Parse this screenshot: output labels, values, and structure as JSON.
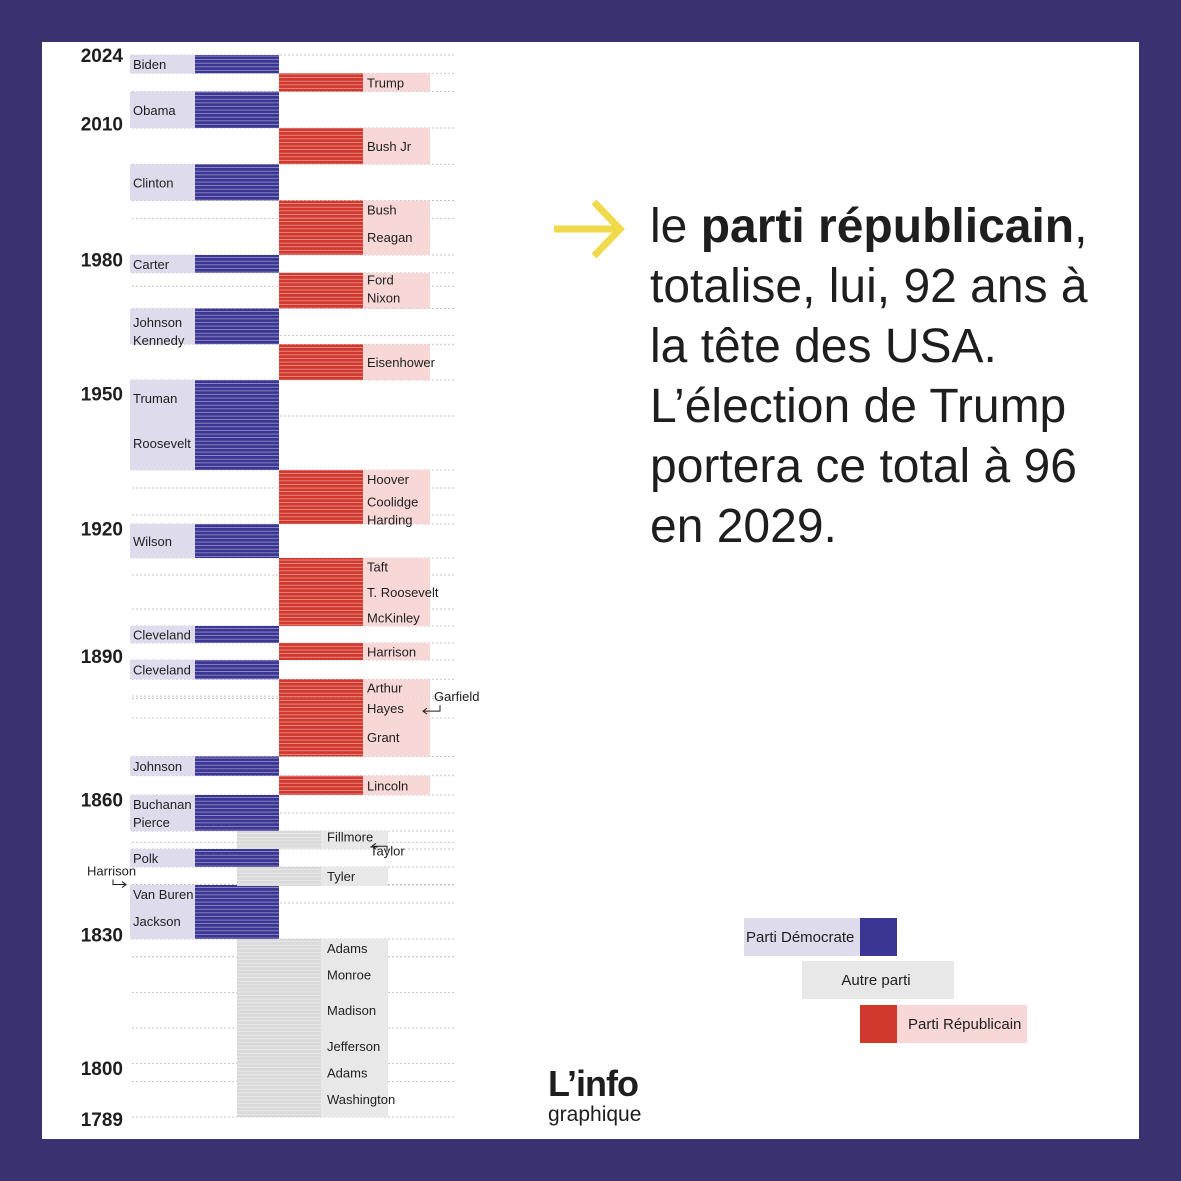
{
  "chart_data": {
    "type": "timeline",
    "title": "",
    "year_ticks": [
      "2024",
      "2010",
      "1980",
      "1950",
      "1920",
      "1890",
      "1860",
      "1830",
      "1800",
      "1789"
    ],
    "parties": [
      {
        "key": "dem",
        "name": "Parti Démocrate",
        "color": "#3b3593",
        "label_bg": "#dedcec"
      },
      {
        "key": "other",
        "name": "Autre parti",
        "color": "#d9d9d9",
        "label_bg": "#e8e8e8"
      },
      {
        "key": "rep",
        "name": "Parti Républicain",
        "color": "#d2392e",
        "label_bg": "#f7d8d7"
      }
    ],
    "presidencies": [
      {
        "name": "Washington",
        "party": "other",
        "start": 1789,
        "end": 1797
      },
      {
        "name": "Adams",
        "party": "other",
        "start": 1797,
        "end": 1801
      },
      {
        "name": "Jefferson",
        "party": "other",
        "start": 1801,
        "end": 1809
      },
      {
        "name": "Madison",
        "party": "other",
        "start": 1809,
        "end": 1817
      },
      {
        "name": "Monroe",
        "party": "other",
        "start": 1817,
        "end": 1825
      },
      {
        "name": "Adams",
        "party": "other",
        "start": 1825,
        "end": 1829
      },
      {
        "name": "Jackson",
        "party": "dem",
        "start": 1829,
        "end": 1837
      },
      {
        "name": "Van Buren",
        "party": "dem",
        "start": 1837,
        "end": 1841
      },
      {
        "name": "Harrison",
        "party": "other",
        "start": 1841,
        "end": 1841.1
      },
      {
        "name": "Tyler",
        "party": "other",
        "start": 1841.1,
        "end": 1845
      },
      {
        "name": "Polk",
        "party": "dem",
        "start": 1845,
        "end": 1849
      },
      {
        "name": "Taylor",
        "party": "other",
        "start": 1849,
        "end": 1850.5
      },
      {
        "name": "Fillmore",
        "party": "other",
        "start": 1850.5,
        "end": 1853
      },
      {
        "name": "Pierce",
        "party": "dem",
        "start": 1853,
        "end": 1857
      },
      {
        "name": "Buchanan",
        "party": "dem",
        "start": 1857,
        "end": 1861
      },
      {
        "name": "Lincoln",
        "party": "rep",
        "start": 1861,
        "end": 1865
      },
      {
        "name": "Johnson",
        "party": "dem",
        "start": 1865,
        "end": 1869
      },
      {
        "name": "Grant",
        "party": "rep",
        "start": 1869,
        "end": 1877
      },
      {
        "name": "Hayes",
        "party": "rep",
        "start": 1877,
        "end": 1881
      },
      {
        "name": "Garfield",
        "party": "rep",
        "start": 1881,
        "end": 1881.5
      },
      {
        "name": "Arthur",
        "party": "rep",
        "start": 1881.5,
        "end": 1885
      },
      {
        "name": "Cleveland",
        "party": "dem",
        "start": 1885,
        "end": 1889
      },
      {
        "name": "Harrison",
        "party": "rep",
        "start": 1889,
        "end": 1893
      },
      {
        "name": "Cleveland",
        "party": "dem",
        "start": 1893,
        "end": 1897
      },
      {
        "name": "McKinley",
        "party": "rep",
        "start": 1897,
        "end": 1901
      },
      {
        "name": "T. Roosevelt",
        "party": "rep",
        "start": 1901,
        "end": 1909
      },
      {
        "name": "Taft",
        "party": "rep",
        "start": 1909,
        "end": 1913
      },
      {
        "name": "Wilson",
        "party": "dem",
        "start": 1913,
        "end": 1921
      },
      {
        "name": "Harding",
        "party": "rep",
        "start": 1921,
        "end": 1923
      },
      {
        "name": "Coolidge",
        "party": "rep",
        "start": 1923,
        "end": 1929
      },
      {
        "name": "Hoover",
        "party": "rep",
        "start": 1929,
        "end": 1933
      },
      {
        "name": "Roosevelt",
        "party": "dem",
        "start": 1933,
        "end": 1945
      },
      {
        "name": "Truman",
        "party": "dem",
        "start": 1945,
        "end": 1953
      },
      {
        "name": "Eisenhower",
        "party": "rep",
        "start": 1953,
        "end": 1961
      },
      {
        "name": "Kennedy",
        "party": "dem",
        "start": 1961,
        "end": 1963
      },
      {
        "name": "Johnson",
        "party": "dem",
        "start": 1963,
        "end": 1969
      },
      {
        "name": "Nixon",
        "party": "rep",
        "start": 1969,
        "end": 1974
      },
      {
        "name": "Ford",
        "party": "rep",
        "start": 1974,
        "end": 1977
      },
      {
        "name": "Carter",
        "party": "dem",
        "start": 1977,
        "end": 1981
      },
      {
        "name": "Reagan",
        "party": "rep",
        "start": 1981,
        "end": 1989
      },
      {
        "name": "Bush",
        "party": "rep",
        "start": 1989,
        "end": 1993
      },
      {
        "name": "Clinton",
        "party": "dem",
        "start": 1993,
        "end": 2001
      },
      {
        "name": "Bush Jr",
        "party": "rep",
        "start": 2001,
        "end": 2009
      },
      {
        "name": "Obama",
        "party": "dem",
        "start": 2009,
        "end": 2017
      },
      {
        "name": "Trump",
        "party": "rep",
        "start": 2017,
        "end": 2021
      },
      {
        "name": "Biden",
        "party": "dem",
        "start": 2021,
        "end": 2025
      }
    ]
  },
  "statement": {
    "intro": "le ",
    "bold": "parti républicain",
    "rest": ", totalise, lui, 92 ans à la tête des USA. L’élection de Trump portera ce total à 96 en 2029."
  },
  "icons": {
    "statement_arrow": "arrow-right-icon",
    "callout_arrow": "return-arrow-icon"
  },
  "arrow_color": "#f0d94a",
  "brand": {
    "main": "L’info",
    "sub": "graphique"
  }
}
